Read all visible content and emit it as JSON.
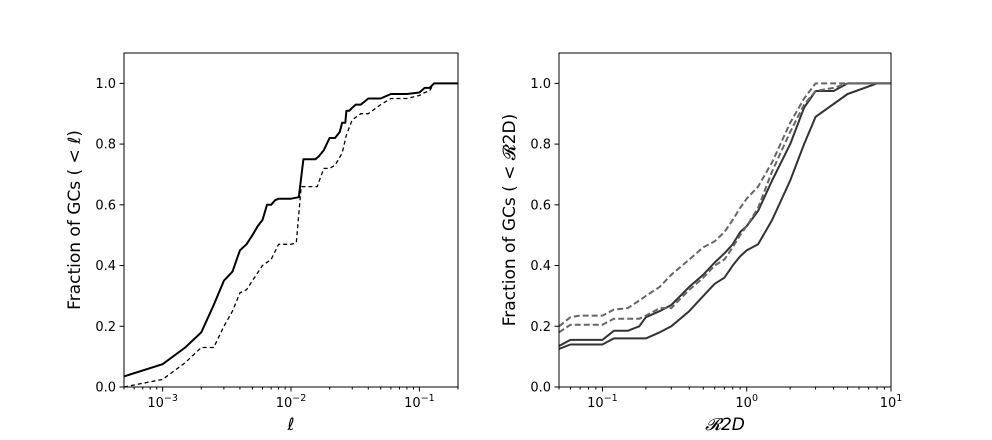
{
  "chart_data": [
    {
      "type": "line",
      "xscale": "log",
      "xlim": [
        0.0005,
        0.2
      ],
      "ylim": [
        0.0,
        1.1
      ],
      "xlabel": "ℓ",
      "ylabel": "Fraction of GCs ( < ℓ)",
      "x_ticks": [
        {
          "value": 0.001,
          "base": "10",
          "exp": "−3"
        },
        {
          "value": 0.01,
          "base": "10",
          "exp": "−2"
        },
        {
          "value": 0.1,
          "base": "10",
          "exp": "−1"
        }
      ],
      "y_ticks": [
        {
          "value": 0.0,
          "label": "0.0"
        },
        {
          "value": 0.2,
          "label": "0.2"
        },
        {
          "value": 0.4,
          "label": "0.4"
        },
        {
          "value": 0.6,
          "label": "0.6"
        },
        {
          "value": 0.8,
          "label": "0.8"
        },
        {
          "value": 1.0,
          "label": "1.0"
        }
      ],
      "series": [
        {
          "style": "solid",
          "color": "#000000",
          "x": [
            0.0005,
            0.001,
            0.0015,
            0.002,
            0.0025,
            0.003,
            0.0035,
            0.004,
            0.0045,
            0.005,
            0.0055,
            0.006,
            0.0065,
            0.007,
            0.0075,
            0.008,
            0.009,
            0.01,
            0.0115,
            0.0125,
            0.014,
            0.0155,
            0.0165,
            0.018,
            0.02,
            0.022,
            0.024,
            0.025,
            0.0265,
            0.027,
            0.0285,
            0.03,
            0.032,
            0.035,
            0.04,
            0.05,
            0.06,
            0.07,
            0.08,
            0.1,
            0.11,
            0.12,
            0.13,
            0.2
          ],
          "y": [
            0.035,
            0.075,
            0.13,
            0.18,
            0.27,
            0.35,
            0.38,
            0.45,
            0.47,
            0.5,
            0.53,
            0.55,
            0.6,
            0.6,
            0.615,
            0.62,
            0.62,
            0.62,
            0.625,
            0.75,
            0.75,
            0.75,
            0.76,
            0.78,
            0.82,
            0.82,
            0.84,
            0.87,
            0.87,
            0.91,
            0.91,
            0.92,
            0.93,
            0.93,
            0.95,
            0.95,
            0.965,
            0.965,
            0.965,
            0.97,
            0.985,
            0.985,
            1.0,
            1.0
          ]
        },
        {
          "style": "dashed",
          "color": "#000000",
          "x": [
            0.0005,
            0.001,
            0.0015,
            0.002,
            0.0025,
            0.003,
            0.0035,
            0.004,
            0.0045,
            0.005,
            0.006,
            0.007,
            0.008,
            0.009,
            0.01,
            0.011,
            0.012,
            0.013,
            0.014,
            0.016,
            0.018,
            0.02,
            0.022,
            0.025,
            0.027,
            0.03,
            0.035,
            0.04,
            0.05,
            0.06,
            0.08,
            0.1,
            0.11,
            0.12,
            0.13,
            0.2
          ],
          "y": [
            0.0,
            0.025,
            0.08,
            0.13,
            0.13,
            0.2,
            0.25,
            0.31,
            0.32,
            0.35,
            0.4,
            0.42,
            0.47,
            0.47,
            0.47,
            0.475,
            0.66,
            0.66,
            0.66,
            0.66,
            0.72,
            0.72,
            0.73,
            0.77,
            0.83,
            0.88,
            0.9,
            0.9,
            0.93,
            0.95,
            0.95,
            0.96,
            0.97,
            0.975,
            1.0,
            1.0
          ]
        }
      ]
    },
    {
      "type": "line",
      "xscale": "log",
      "xlim": [
        0.05,
        10
      ],
      "ylim": [
        0.0,
        1.1
      ],
      "xlabel": "𝓡2D",
      "ylabel": "Fraction of GCs ( < 𝓡2D)",
      "x_ticks": [
        {
          "value": 0.1,
          "base": "10",
          "exp": "−1"
        },
        {
          "value": 1,
          "base": "10",
          "exp": "0"
        },
        {
          "value": 10,
          "base": "10",
          "exp": "1"
        }
      ],
      "y_ticks": [
        {
          "value": 0.0,
          "label": "0.0"
        },
        {
          "value": 0.2,
          "label": "0.2"
        },
        {
          "value": 0.4,
          "label": "0.4"
        },
        {
          "value": 0.6,
          "label": "0.6"
        },
        {
          "value": 0.8,
          "label": "0.8"
        },
        {
          "value": 1.0,
          "label": "1.0"
        }
      ],
      "series": [
        {
          "style": "solid",
          "color": "#333333",
          "x": [
            0.05,
            0.06,
            0.07,
            0.1,
            0.12,
            0.15,
            0.18,
            0.2,
            0.25,
            0.3,
            0.4,
            0.5,
            0.6,
            0.7,
            0.8,
            0.9,
            1.0,
            1.2,
            1.5,
            2.0,
            2.5,
            3.0,
            5.0,
            8.0,
            10
          ],
          "y": [
            0.125,
            0.14,
            0.14,
            0.14,
            0.16,
            0.16,
            0.16,
            0.16,
            0.18,
            0.2,
            0.25,
            0.3,
            0.34,
            0.36,
            0.4,
            0.43,
            0.45,
            0.47,
            0.55,
            0.68,
            0.8,
            0.89,
            0.965,
            1.0,
            1.0
          ]
        },
        {
          "style": "solid",
          "color": "#333333",
          "x": [
            0.05,
            0.06,
            0.07,
            0.1,
            0.12,
            0.15,
            0.18,
            0.2,
            0.25,
            0.3,
            0.4,
            0.5,
            0.6,
            0.7,
            0.8,
            0.9,
            1.0,
            1.2,
            1.5,
            2.0,
            2.5,
            3.0,
            4.0,
            5.0,
            10
          ],
          "y": [
            0.135,
            0.155,
            0.155,
            0.155,
            0.185,
            0.185,
            0.2,
            0.23,
            0.25,
            0.27,
            0.33,
            0.37,
            0.41,
            0.44,
            0.47,
            0.51,
            0.53,
            0.58,
            0.68,
            0.8,
            0.92,
            0.975,
            0.975,
            1.0,
            1.0
          ]
        },
        {
          "style": "dashed",
          "color": "#666666",
          "x": [
            0.05,
            0.06,
            0.07,
            0.1,
            0.12,
            0.15,
            0.18,
            0.2,
            0.25,
            0.3,
            0.4,
            0.5,
            0.6,
            0.7,
            0.8,
            0.9,
            1.0,
            1.2,
            1.5,
            2.0,
            2.5,
            3.0,
            4.0,
            5.0,
            10
          ],
          "y": [
            0.18,
            0.205,
            0.205,
            0.205,
            0.225,
            0.225,
            0.225,
            0.235,
            0.26,
            0.26,
            0.32,
            0.36,
            0.4,
            0.42,
            0.46,
            0.5,
            0.53,
            0.59,
            0.71,
            0.84,
            0.93,
            0.975,
            0.985,
            1.0,
            1.0
          ]
        },
        {
          "style": "dashed",
          "color": "#666666",
          "x": [
            0.05,
            0.06,
            0.07,
            0.1,
            0.12,
            0.15,
            0.18,
            0.2,
            0.25,
            0.3,
            0.4,
            0.5,
            0.6,
            0.7,
            0.8,
            0.9,
            1.0,
            1.2,
            1.5,
            2.0,
            2.5,
            3.0,
            4.0,
            10
          ],
          "y": [
            0.2,
            0.23,
            0.235,
            0.235,
            0.255,
            0.26,
            0.285,
            0.3,
            0.33,
            0.37,
            0.42,
            0.46,
            0.48,
            0.51,
            0.55,
            0.59,
            0.62,
            0.66,
            0.74,
            0.87,
            0.95,
            1.0,
            1.0,
            1.0
          ]
        }
      ]
    }
  ]
}
